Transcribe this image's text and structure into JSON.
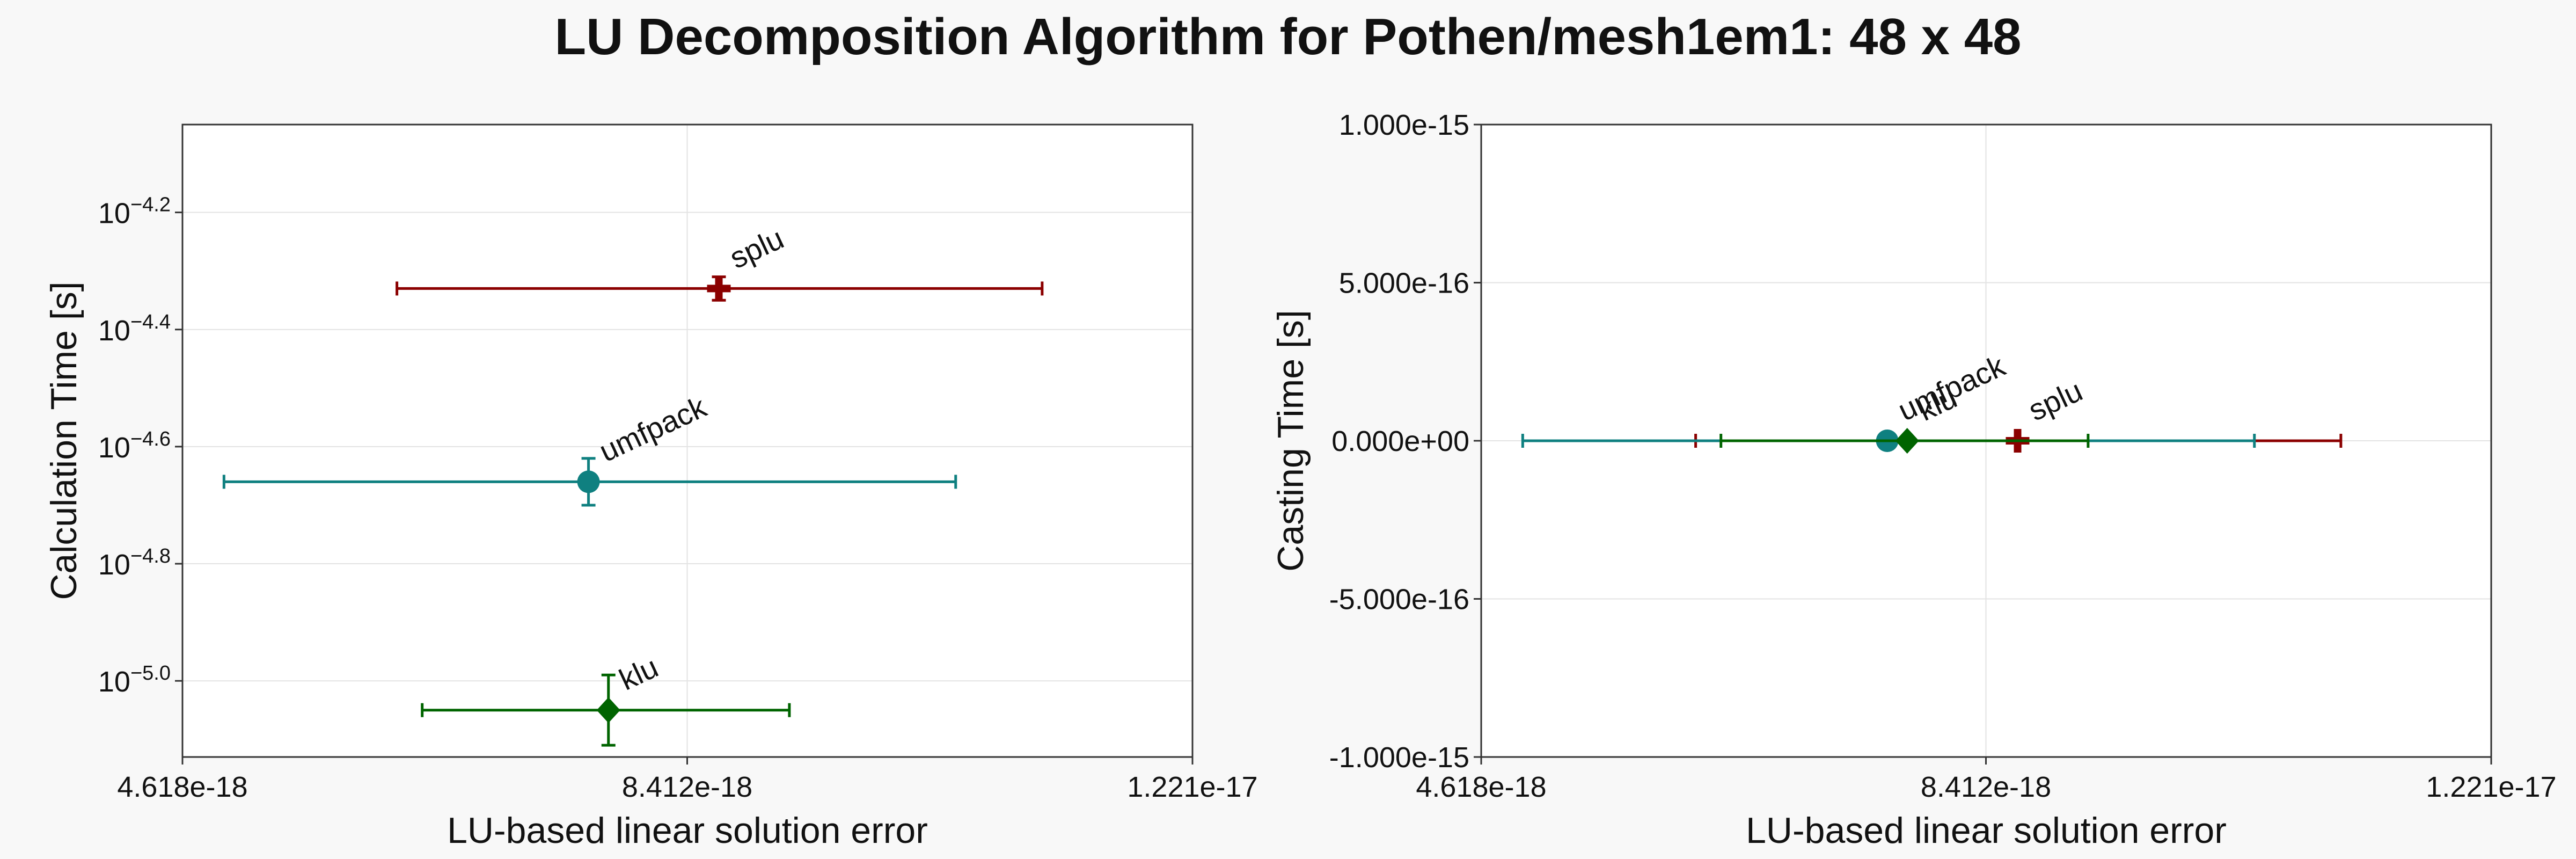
{
  "title": "LU Decomposition Algorithm for Pothen/mesh1em1: 48 x 48",
  "colors": {
    "splu": "#8b0000",
    "umfpack": "#0f8080",
    "klu": "#006400",
    "grid": "#e3e3e3",
    "axis": "#333333"
  },
  "chart_data": [
    {
      "type": "scatter",
      "xlabel": "LU-based linear solution error",
      "ylabel": "Calculation Time [s]",
      "xscale": "linear",
      "yscale": "log",
      "xlim": [
        4.618e-18,
        1.221e-17
      ],
      "ylim_log10": [
        -5.13,
        -4.05
      ],
      "grid": true,
      "x_ticks": [
        {
          "value": 4.618e-18,
          "label": "4.618e-18"
        },
        {
          "value": 8.412e-18,
          "label": "8.412e-18"
        },
        {
          "value": 1.221e-17,
          "label": "1.221e-17"
        }
      ],
      "y_ticks": [
        {
          "value": -5.0,
          "base": "10",
          "exp": "−5.0"
        },
        {
          "value": -4.8,
          "base": "10",
          "exp": "−4.8"
        },
        {
          "value": -4.6,
          "base": "10",
          "exp": "−4.6"
        },
        {
          "value": -4.4,
          "base": "10",
          "exp": "−4.4"
        },
        {
          "value": -4.2,
          "base": "10",
          "exp": "−4.2"
        }
      ],
      "series": [
        {
          "name": "splu",
          "key": "splu",
          "marker": "cross",
          "x": 8.65e-18,
          "x_err": [
            6.23e-18,
            1.108e-17
          ],
          "y_log10": -4.33,
          "y_err_log10": [
            -4.35,
            -4.31
          ]
        },
        {
          "name": "umfpack",
          "key": "umfpack",
          "marker": "circle",
          "x": 7.67e-18,
          "x_err": [
            4.93e-18,
            1.043e-17
          ],
          "y_log10": -4.66,
          "y_err_log10": [
            -4.7,
            -4.62
          ]
        },
        {
          "name": "klu",
          "key": "klu",
          "marker": "diamond",
          "x": 7.82e-18,
          "x_err": [
            6.42e-18,
            9.18e-18
          ],
          "y_log10": -5.05,
          "y_err_log10": [
            -5.11,
            -4.99
          ]
        }
      ]
    },
    {
      "type": "scatter",
      "xlabel": "LU-based linear solution error",
      "ylabel": "Casting Time [s]",
      "xscale": "linear",
      "yscale": "linear",
      "xlim": [
        4.618e-18,
        1.221e-17
      ],
      "ylim": [
        -1e-15,
        1e-15
      ],
      "grid": true,
      "x_ticks": [
        {
          "value": 4.618e-18,
          "label": "4.618e-18"
        },
        {
          "value": 8.412e-18,
          "label": "8.412e-18"
        },
        {
          "value": 1.221e-17,
          "label": "1.221e-17"
        }
      ],
      "y_ticks": [
        {
          "value": -1e-15,
          "label": "-1.000e-15"
        },
        {
          "value": -5e-16,
          "label": "-5.000e-16"
        },
        {
          "value": 0,
          "label": "0.000e+00"
        },
        {
          "value": 5e-16,
          "label": "5.000e-16"
        },
        {
          "value": 1e-15,
          "label": "1.000e-15"
        }
      ],
      "series": [
        {
          "name": "splu",
          "key": "splu",
          "marker": "cross",
          "x": 8.65e-18,
          "x_err": [
            6.23e-18,
            1.108e-17
          ],
          "y": 0
        },
        {
          "name": "umfpack",
          "key": "umfpack",
          "marker": "circle",
          "x": 7.67e-18,
          "x_err": [
            4.93e-18,
            1.043e-17
          ],
          "y": 0
        },
        {
          "name": "klu",
          "key": "klu",
          "marker": "diamond",
          "x": 7.82e-18,
          "x_err": [
            6.42e-18,
            9.18e-18
          ],
          "y": 0
        }
      ]
    }
  ]
}
